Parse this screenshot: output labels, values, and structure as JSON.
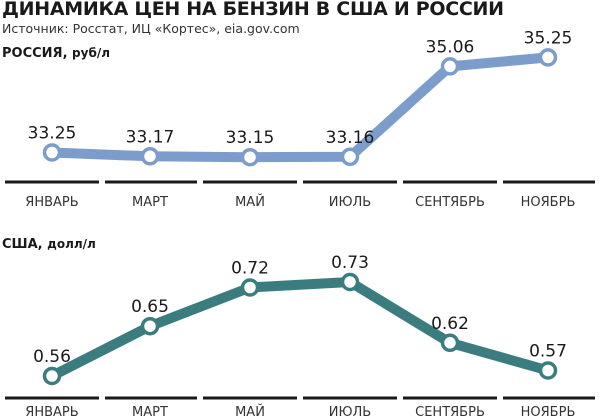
{
  "header": {
    "title": "ДИНАМИКА ЦЕН НА БЕНЗИН В США И РОССИИ",
    "source": "Источник: Росстат, ИЦ «Кортес», eia.gov.com"
  },
  "colors": {
    "russia_line": "#7c9ccb",
    "usa_line": "#3b7c7e",
    "axis": "#1a1a1a",
    "marker_fill": "#ffffff"
  },
  "chart_data": [
    {
      "type": "line",
      "title": "РОССИЯ",
      "ylabel": "руб/л",
      "categories": [
        "ЯНВАРЬ",
        "МАРТ",
        "МАЙ",
        "ИЮЛЬ",
        "СЕНТЯБРЬ",
        "НОЯБРЬ"
      ],
      "series": [
        {
          "values": [
            33.25,
            33.17,
            33.15,
            33.16,
            35.06,
            35.25
          ]
        }
      ],
      "data_labels": [
        "33.25",
        "33.17",
        "33.15",
        "33.16",
        "35.06",
        "35.25"
      ],
      "grid": false
    },
    {
      "type": "line",
      "title": "США",
      "ylabel": "долл/л",
      "categories": [
        "ЯНВАРЬ",
        "МАРТ",
        "МАЙ",
        "ИЮЛЬ",
        "СЕНТЯБРЬ",
        "НОЯБРЬ"
      ],
      "series": [
        {
          "values": [
            0.56,
            0.65,
            0.72,
            0.73,
            0.62,
            0.57
          ]
        }
      ],
      "data_labels": [
        "0.56",
        "0.65",
        "0.72",
        "0.73",
        "0.62",
        "0.57"
      ],
      "grid": false
    }
  ]
}
